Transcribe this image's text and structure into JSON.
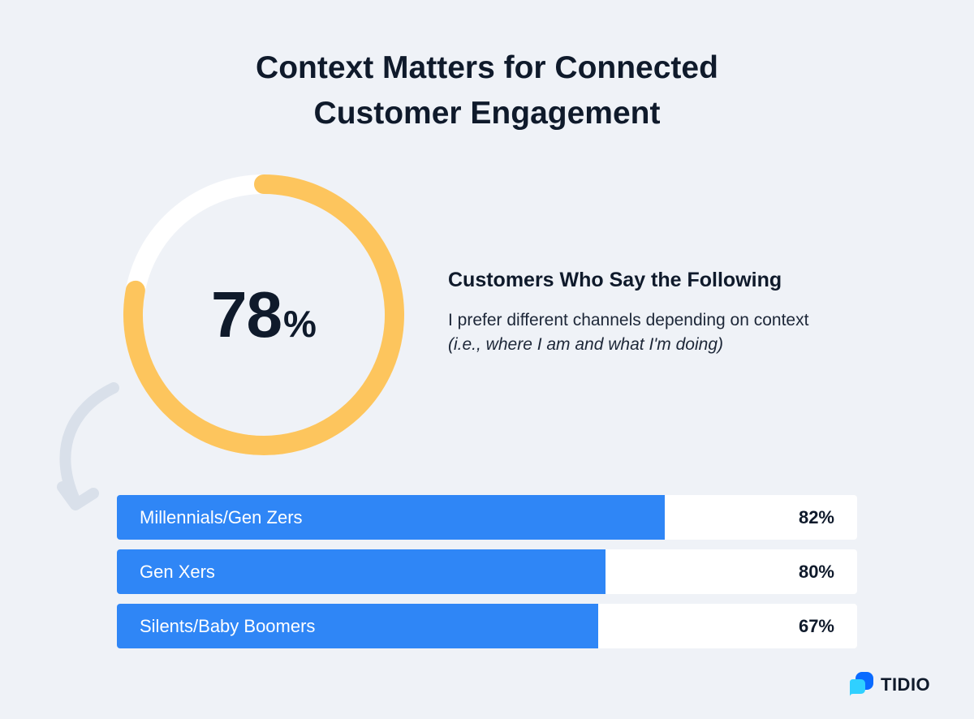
{
  "header": {
    "title_line1": "Context Matters for Connected",
    "title_line2": "Customer Engagement"
  },
  "chart_data": [
    {
      "type": "pie",
      "values": [
        78,
        22
      ],
      "value_label": "78",
      "value_unit": "%",
      "colors": {
        "fill": "#fdc55d",
        "track": "#ffffff"
      }
    },
    {
      "type": "bar",
      "orientation": "horizontal",
      "categories": [
        "Millennials/Gen Zers",
        "Gen Xers",
        "Silents/Baby Boomers"
      ],
      "values": [
        82,
        80,
        67
      ],
      "value_labels": [
        "82%",
        "80%",
        "67%"
      ],
      "fill_fractions": [
        0.74,
        0.66,
        0.65
      ],
      "colors": {
        "fill": "#2f86f6",
        "track": "#ffffff"
      }
    }
  ],
  "description": {
    "title": "Customers Who Say the Following",
    "line1": "I prefer different channels depending on context",
    "line2": "(i.e., where I am and what I'm doing)"
  },
  "brand": {
    "name": "TIDIO",
    "icon": "tidio-logo-icon",
    "colors": {
      "light": "#2fd0ff",
      "dark": "#0a6bff"
    }
  }
}
